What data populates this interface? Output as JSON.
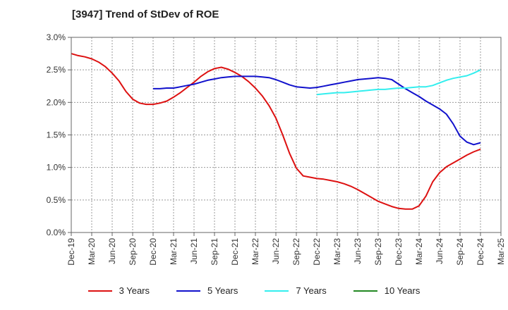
{
  "chart_data": {
    "type": "line",
    "title": "[3947]  Trend of StDev of ROE",
    "xlabel": "",
    "ylabel": "",
    "x_ticks": [
      "Dec-19",
      "Mar-20",
      "Jun-20",
      "Sep-20",
      "Dec-20",
      "Mar-21",
      "Jun-21",
      "Sep-21",
      "Dec-21",
      "Mar-22",
      "Jun-22",
      "Sep-22",
      "Dec-22",
      "Mar-23",
      "Jun-23",
      "Sep-23",
      "Dec-23",
      "Mar-24",
      "Jun-24",
      "Sep-24",
      "Dec-24",
      "Mar-25"
    ],
    "y_ticks": [
      "0.0%",
      "0.5%",
      "1.0%",
      "1.5%",
      "2.0%",
      "2.5%",
      "3.0%"
    ],
    "ylim": [
      0,
      3.0
    ],
    "grid": true,
    "legend_position": "bottom",
    "series": [
      {
        "name": "3 Years",
        "color": "#dd1111",
        "x": [
          "Dec-19",
          "Jan-20",
          "Feb-20",
          "Mar-20",
          "Apr-20",
          "May-20",
          "Jun-20",
          "Jul-20",
          "Aug-20",
          "Sep-20",
          "Oct-20",
          "Nov-20",
          "Dec-20",
          "Jan-21",
          "Feb-21",
          "Mar-21",
          "Apr-21",
          "May-21",
          "Jun-21",
          "Jul-21",
          "Aug-21",
          "Sep-21",
          "Oct-21",
          "Nov-21",
          "Dec-21",
          "Jan-22",
          "Feb-22",
          "Mar-22",
          "Apr-22",
          "May-22",
          "Jun-22",
          "Jul-22",
          "Aug-22",
          "Sep-22",
          "Oct-22",
          "Nov-22",
          "Dec-22",
          "Jan-23",
          "Feb-23",
          "Mar-23",
          "Apr-23",
          "May-23",
          "Jun-23",
          "Jul-23",
          "Aug-23",
          "Sep-23",
          "Oct-23",
          "Nov-23",
          "Dec-23",
          "Jan-24",
          "Feb-24",
          "Mar-24",
          "Apr-24",
          "May-24",
          "Jun-24",
          "Jul-24",
          "Aug-24",
          "Sep-24",
          "Oct-24",
          "Nov-24",
          "Dec-24"
        ],
        "values": [
          2.75,
          2.72,
          2.7,
          2.67,
          2.62,
          2.55,
          2.45,
          2.33,
          2.17,
          2.05,
          1.99,
          1.97,
          1.97,
          1.99,
          2.02,
          2.08,
          2.15,
          2.23,
          2.31,
          2.4,
          2.47,
          2.52,
          2.54,
          2.51,
          2.46,
          2.4,
          2.32,
          2.22,
          2.1,
          1.95,
          1.76,
          1.5,
          1.22,
          0.99,
          0.87,
          0.85,
          0.83,
          0.82,
          0.8,
          0.78,
          0.75,
          0.71,
          0.66,
          0.6,
          0.54,
          0.48,
          0.44,
          0.4,
          0.37,
          0.36,
          0.36,
          0.41,
          0.56,
          0.78,
          0.92,
          1.01,
          1.07,
          1.13,
          1.19,
          1.24,
          1.28
        ]
      },
      {
        "name": "5 Years",
        "color": "#1111cc",
        "x": [
          "Dec-20",
          "Jan-21",
          "Feb-21",
          "Mar-21",
          "Apr-21",
          "May-21",
          "Jun-21",
          "Jul-21",
          "Aug-21",
          "Sep-21",
          "Oct-21",
          "Nov-21",
          "Dec-21",
          "Jan-22",
          "Feb-22",
          "Mar-22",
          "Apr-22",
          "May-22",
          "Jun-22",
          "Jul-22",
          "Aug-22",
          "Sep-22",
          "Oct-22",
          "Nov-22",
          "Dec-22",
          "Jan-23",
          "Feb-23",
          "Mar-23",
          "Apr-23",
          "May-23",
          "Jun-23",
          "Jul-23",
          "Aug-23",
          "Sep-23",
          "Oct-23",
          "Nov-23",
          "Dec-23",
          "Jan-24",
          "Feb-24",
          "Mar-24",
          "Apr-24",
          "May-24",
          "Jun-24",
          "Jul-24",
          "Aug-24",
          "Sep-24",
          "Oct-24",
          "Nov-24",
          "Dec-24"
        ],
        "values": [
          2.21,
          2.21,
          2.22,
          2.22,
          2.24,
          2.26,
          2.28,
          2.31,
          2.34,
          2.36,
          2.38,
          2.39,
          2.4,
          2.4,
          2.4,
          2.4,
          2.39,
          2.38,
          2.35,
          2.31,
          2.27,
          2.24,
          2.23,
          2.22,
          2.23,
          2.25,
          2.27,
          2.29,
          2.31,
          2.33,
          2.35,
          2.36,
          2.37,
          2.38,
          2.37,
          2.35,
          2.28,
          2.21,
          2.15,
          2.09,
          2.02,
          1.96,
          1.9,
          1.82,
          1.67,
          1.48,
          1.39,
          1.35,
          1.38
        ]
      },
      {
        "name": "7 Years",
        "color": "#33eeee",
        "x": [
          "Dec-22",
          "Jan-23",
          "Feb-23",
          "Mar-23",
          "Apr-23",
          "May-23",
          "Jun-23",
          "Jul-23",
          "Aug-23",
          "Sep-23",
          "Oct-23",
          "Nov-23",
          "Dec-23",
          "Jan-24",
          "Feb-24",
          "Mar-24",
          "Apr-24",
          "May-24",
          "Jun-24",
          "Jul-24",
          "Aug-24",
          "Sep-24",
          "Oct-24",
          "Nov-24",
          "Dec-24"
        ],
        "values": [
          2.12,
          2.13,
          2.14,
          2.15,
          2.15,
          2.16,
          2.17,
          2.18,
          2.19,
          2.2,
          2.2,
          2.21,
          2.22,
          2.22,
          2.23,
          2.24,
          2.24,
          2.26,
          2.3,
          2.34,
          2.37,
          2.39,
          2.41,
          2.45,
          2.5
        ]
      },
      {
        "name": "10 Years",
        "color": "#228822",
        "x": [],
        "values": []
      }
    ]
  }
}
